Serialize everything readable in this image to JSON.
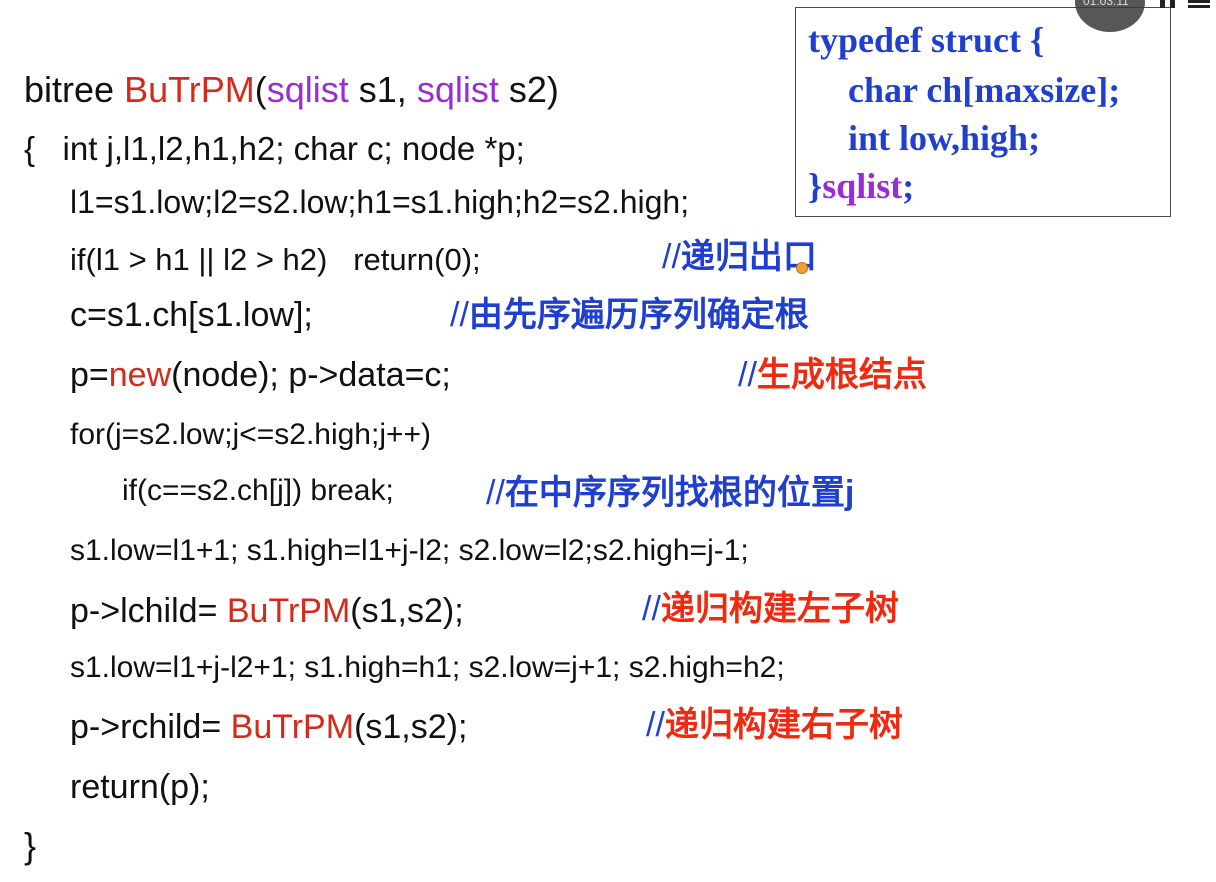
{
  "code": {
    "line0": {
      "ret": "bitree ",
      "fn": "BuTrPM",
      "p1": "(",
      "t1": "sqlist",
      "a1": " s1, ",
      "t2": "sqlist",
      "a2": " s2)"
    },
    "line1": {
      "text": "{   int j,l1,l2,h1,h2; char c; node *p;"
    },
    "line2": {
      "text": "l1=s1.low;l2=s2.low;h1=s1.high;h2=s2.high;"
    },
    "line3": {
      "code": "if(l1 > h1 || l2 > h2)   return(0);",
      "slashes": "//",
      "comment": "递归出口"
    },
    "line4": {
      "code": "c=s1.ch[s1.low];",
      "slashes": "//",
      "comment": "由先序遍历序列确定根"
    },
    "line5": {
      "pre": "p=",
      "kw": "new",
      "post": "(node); p->data=c;",
      "slashes": "//",
      "comment": "生成根结点"
    },
    "line6": {
      "text": "for(j=s2.low;j<=s2.high;j++)"
    },
    "line7": {
      "code": "if(c==s2.ch[j]) break;",
      "slashes": "//",
      "comment": "在中序序列找根的位置j"
    },
    "line8": {
      "text": "s1.low=l1+1; s1.high=l1+j-l2; s2.low=l2;s2.high=j-1;"
    },
    "line9": {
      "pre": "p->lchild= ",
      "fn": "BuTrPM",
      "post": "(s1,s2);",
      "slashes": "//",
      "comment": "递归构建左子树"
    },
    "line10": {
      "text": "s1.low=l1+j-l2+1; s1.high=h1; s2.low=j+1; s2.high=h2;"
    },
    "line11": {
      "pre": "p->rchild= ",
      "fn": "BuTrPM",
      "post": "(s1,s2);",
      "slashes": "//",
      "comment": "递归构建右子树"
    },
    "line12": {
      "text": "return(p);"
    },
    "line13": {
      "text": "}"
    }
  },
  "struct_box": {
    "line1": "typedef struct {",
    "line2": "char ch[maxsize];",
    "line3": "int low,high;",
    "line4_brace": "}",
    "line4_name": "sqlist",
    "line4_semi": ";"
  },
  "player": {
    "time": "01:03:11"
  },
  "colors": {
    "keyword_purple": "#9b2bd6",
    "function_red": "#d42a1a",
    "comment_blue": "#1f3fd0",
    "comment_red": "#ef2a10"
  }
}
